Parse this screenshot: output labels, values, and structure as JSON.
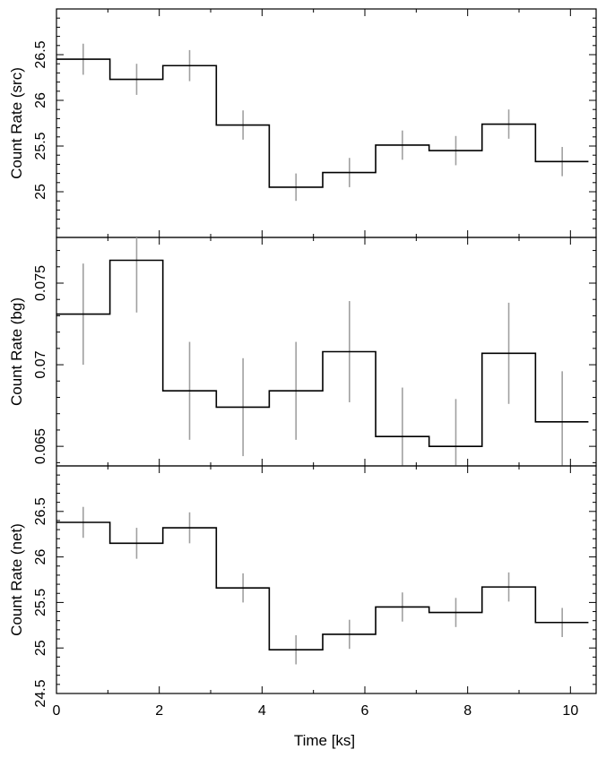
{
  "chart_data": {
    "type": "line",
    "xlabel": "Time [ks]",
    "xlim": [
      0,
      10.5
    ],
    "x_ticks": [
      "0",
      "2",
      "4",
      "6",
      "8",
      "10"
    ],
    "bin_edges": [
      0,
      1.04,
      2.07,
      3.11,
      4.14,
      5.18,
      6.21,
      7.25,
      8.28,
      9.32,
      10.35
    ],
    "bin_centers": [
      0.52,
      1.56,
      2.59,
      3.63,
      4.66,
      5.7,
      6.73,
      7.77,
      8.8,
      9.84
    ],
    "panels": [
      {
        "name": "src",
        "ylabel": "Count Rate (src)",
        "ylim": [
          24.5,
          27.0
        ],
        "y_ticks": [
          "25",
          "25.5",
          "26",
          "26.5"
        ],
        "values": [
          26.45,
          26.23,
          26.38,
          25.73,
          25.05,
          25.21,
          25.51,
          25.45,
          25.74,
          25.33
        ],
        "errors": [
          0.17,
          0.17,
          0.17,
          0.16,
          0.15,
          0.16,
          0.16,
          0.16,
          0.16,
          0.16
        ]
      },
      {
        "name": "bg",
        "ylabel": "Count Rate (bg)",
        "ylim": [
          0.0638,
          0.0778
        ],
        "y_ticks": [
          "0.065",
          "0.07",
          "0.075"
        ],
        "values": [
          0.0731,
          0.0764,
          0.0684,
          0.0674,
          0.0684,
          0.0708,
          0.0656,
          0.065,
          0.0707,
          0.0665
        ],
        "errors": [
          0.0031,
          0.0032,
          0.003,
          0.003,
          0.003,
          0.0031,
          0.003,
          0.0029,
          0.0031,
          0.0031
        ]
      },
      {
        "name": "net",
        "ylabel": "Count Rate (net)",
        "ylim": [
          24.5,
          27.0
        ],
        "y_ticks": [
          "24.5",
          "25",
          "25.5",
          "26",
          "26.5"
        ],
        "values": [
          26.38,
          26.15,
          26.32,
          25.66,
          24.98,
          25.15,
          25.45,
          25.39,
          25.67,
          25.28
        ],
        "errors": [
          0.17,
          0.17,
          0.17,
          0.16,
          0.16,
          0.16,
          0.16,
          0.16,
          0.16,
          0.16
        ]
      }
    ],
    "colors": {
      "step_line": "#000000",
      "error_bar": "#a0a0a0",
      "frame": "#000000"
    },
    "grid": false,
    "legend": "none"
  }
}
